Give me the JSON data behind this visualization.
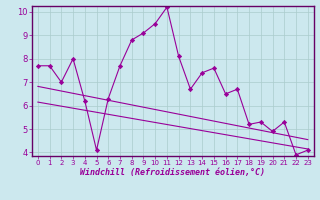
{
  "xlabel": "Windchill (Refroidissement éolien,°C)",
  "background_color": "#cce8ee",
  "line_color": "#990099",
  "grid_color": "#aacccc",
  "border_color": "#660066",
  "x_data": [
    0,
    1,
    2,
    3,
    4,
    5,
    6,
    7,
    8,
    9,
    10,
    11,
    12,
    13,
    14,
    15,
    16,
    17,
    18,
    19,
    20,
    21,
    22,
    23
  ],
  "y_data": [
    7.7,
    7.7,
    7.0,
    8.0,
    6.2,
    4.1,
    6.3,
    7.7,
    8.8,
    9.1,
    9.5,
    10.2,
    8.1,
    6.7,
    7.4,
    7.6,
    6.5,
    6.7,
    5.2,
    5.3,
    4.9,
    5.3,
    3.9,
    4.1
  ],
  "ylim": [
    4,
    10
  ],
  "xlim": [
    0,
    23
  ],
  "yticks": [
    4,
    5,
    6,
    7,
    8,
    9,
    10
  ],
  "xticks": [
    0,
    1,
    2,
    3,
    4,
    5,
    6,
    7,
    8,
    9,
    10,
    11,
    12,
    13,
    14,
    15,
    16,
    17,
    18,
    19,
    20,
    21,
    22,
    23
  ],
  "trend1_x": [
    0,
    23
  ],
  "trend1_y": [
    6.82,
    4.55
  ],
  "trend2_x": [
    0,
    23
  ],
  "trend2_y": [
    6.15,
    4.15
  ]
}
